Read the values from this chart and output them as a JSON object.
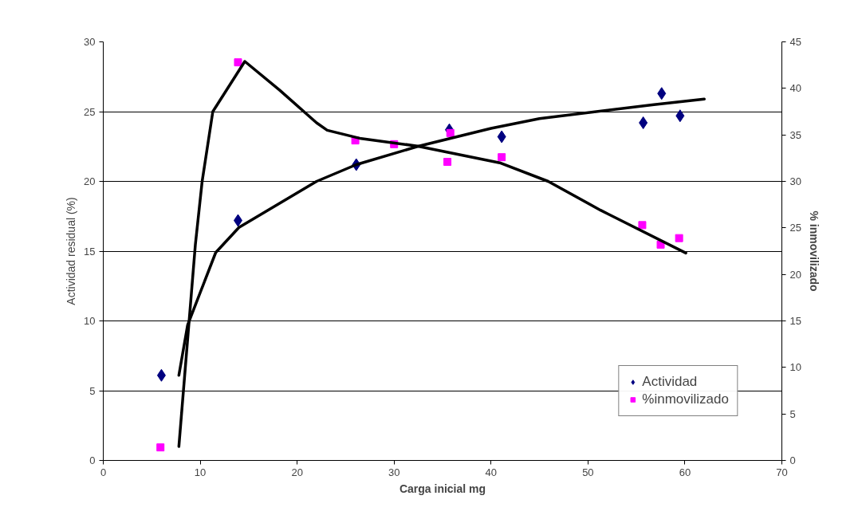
{
  "chart_data": {
    "type": "scatter",
    "xlabel": "Carga inicial mg",
    "ylabel": "Actividad residual (%)",
    "y2label": "% inmovilizado",
    "xlim": [
      0,
      70
    ],
    "xticks": [
      0,
      10,
      20,
      30,
      40,
      50,
      60,
      70
    ],
    "ylim": [
      0,
      30
    ],
    "yticks": [
      0,
      5,
      10,
      15,
      20,
      25,
      30
    ],
    "y2lim": [
      0,
      45
    ],
    "y2ticks": [
      0,
      5,
      10,
      15,
      20,
      25,
      30,
      35,
      40,
      45
    ],
    "grid": "y",
    "legend": "bottom right",
    "series": [
      {
        "name": "Actividad",
        "marker": "diamond",
        "color": "#000080",
        "x": [
          6.0,
          13.9,
          26.1,
          35.7,
          41.1,
          55.7,
          57.6,
          59.5
        ],
        "values": [
          6.1,
          17.2,
          21.2,
          23.7,
          23.2,
          24.2,
          26.3,
          24.7
        ]
      },
      {
        "name": "%inmovilizado",
        "marker": "square",
        "color": "#ff00ff",
        "axis": "y2",
        "x": [
          5.9,
          13.9,
          26.0,
          30.0,
          35.8,
          35.5,
          41.1,
          55.6,
          57.5,
          59.4
        ],
        "values": [
          1.4,
          42.8,
          34.4,
          34.0,
          35.2,
          32.1,
          32.6,
          25.3,
          23.2,
          23.9
        ]
      },
      {
        "type": "line",
        "color": "#000000",
        "x": [
          7.8,
          8.7,
          11.6,
          14.0,
          22.0,
          26.1,
          32.4,
          40.0,
          45.0,
          56.8,
          62.0
        ],
        "values": [
          6.1,
          9.7,
          14.9,
          16.7,
          20.0,
          21.2,
          22.5,
          23.8,
          24.5,
          25.5,
          25.9
        ]
      },
      {
        "type": "line",
        "color": "#000000",
        "axis": "y2",
        "x": [
          7.8,
          9.5,
          10.2,
          11.3,
          14.6,
          18.2,
          22.0,
          23.1,
          26.6,
          32.4,
          40.9,
          45.9,
          51.3,
          60.1
        ],
        "values": [
          1.5,
          23.2,
          30.0,
          37.5,
          42.9,
          39.8,
          36.3,
          35.5,
          34.6,
          33.8,
          32.0,
          30.0,
          26.9,
          22.3
        ]
      }
    ]
  }
}
